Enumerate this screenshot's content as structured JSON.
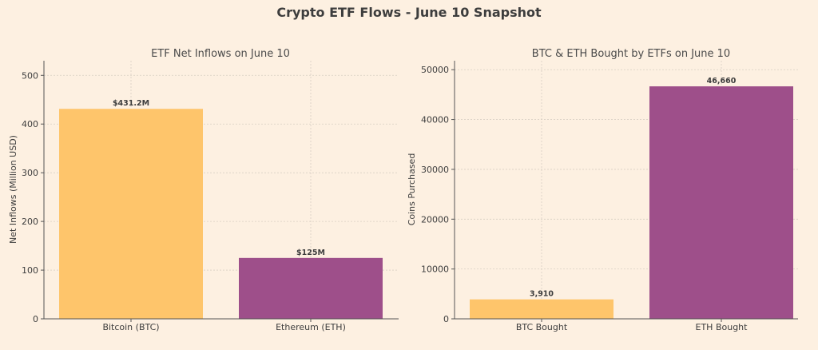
{
  "figure_title": "Crypto ETF Flows - June 10 Snapshot",
  "colors": {
    "background": "#fdf0e1",
    "btc": "#fec56b",
    "eth": "#9e4f8a"
  },
  "chart_data": [
    {
      "type": "bar",
      "title": "ETF Net Inflows on June 10",
      "xlabel": "",
      "ylabel": "Net Inflows (Million USD)",
      "categories": [
        "Bitcoin (BTC)",
        "Ethereum (ETH)"
      ],
      "values": [
        431.2,
        125
      ],
      "data_labels": [
        "$431.2M",
        "$125M"
      ],
      "bar_colors": [
        "#fec56b",
        "#9e4f8a"
      ],
      "ylim": [
        0,
        530
      ],
      "yticks": [
        0,
        100,
        200,
        300,
        400,
        500
      ],
      "ytick_labels": [
        "0",
        "100",
        "200",
        "300",
        "400",
        "500"
      ],
      "grid": true
    },
    {
      "type": "bar",
      "title": "BTC & ETH Bought by ETFs on June 10",
      "xlabel": "",
      "ylabel": "Coins Purchased",
      "categories": [
        "BTC Bought",
        "ETH Bought"
      ],
      "values": [
        3910,
        46660
      ],
      "data_labels": [
        "3,910",
        "46,660"
      ],
      "bar_colors": [
        "#fec56b",
        "#9e4f8a"
      ],
      "ylim": [
        0,
        51800
      ],
      "yticks": [
        0,
        10000,
        20000,
        30000,
        40000,
        50000
      ],
      "ytick_labels": [
        "0",
        "10000",
        "20000",
        "30000",
        "40000",
        "50000"
      ],
      "grid": true
    }
  ]
}
